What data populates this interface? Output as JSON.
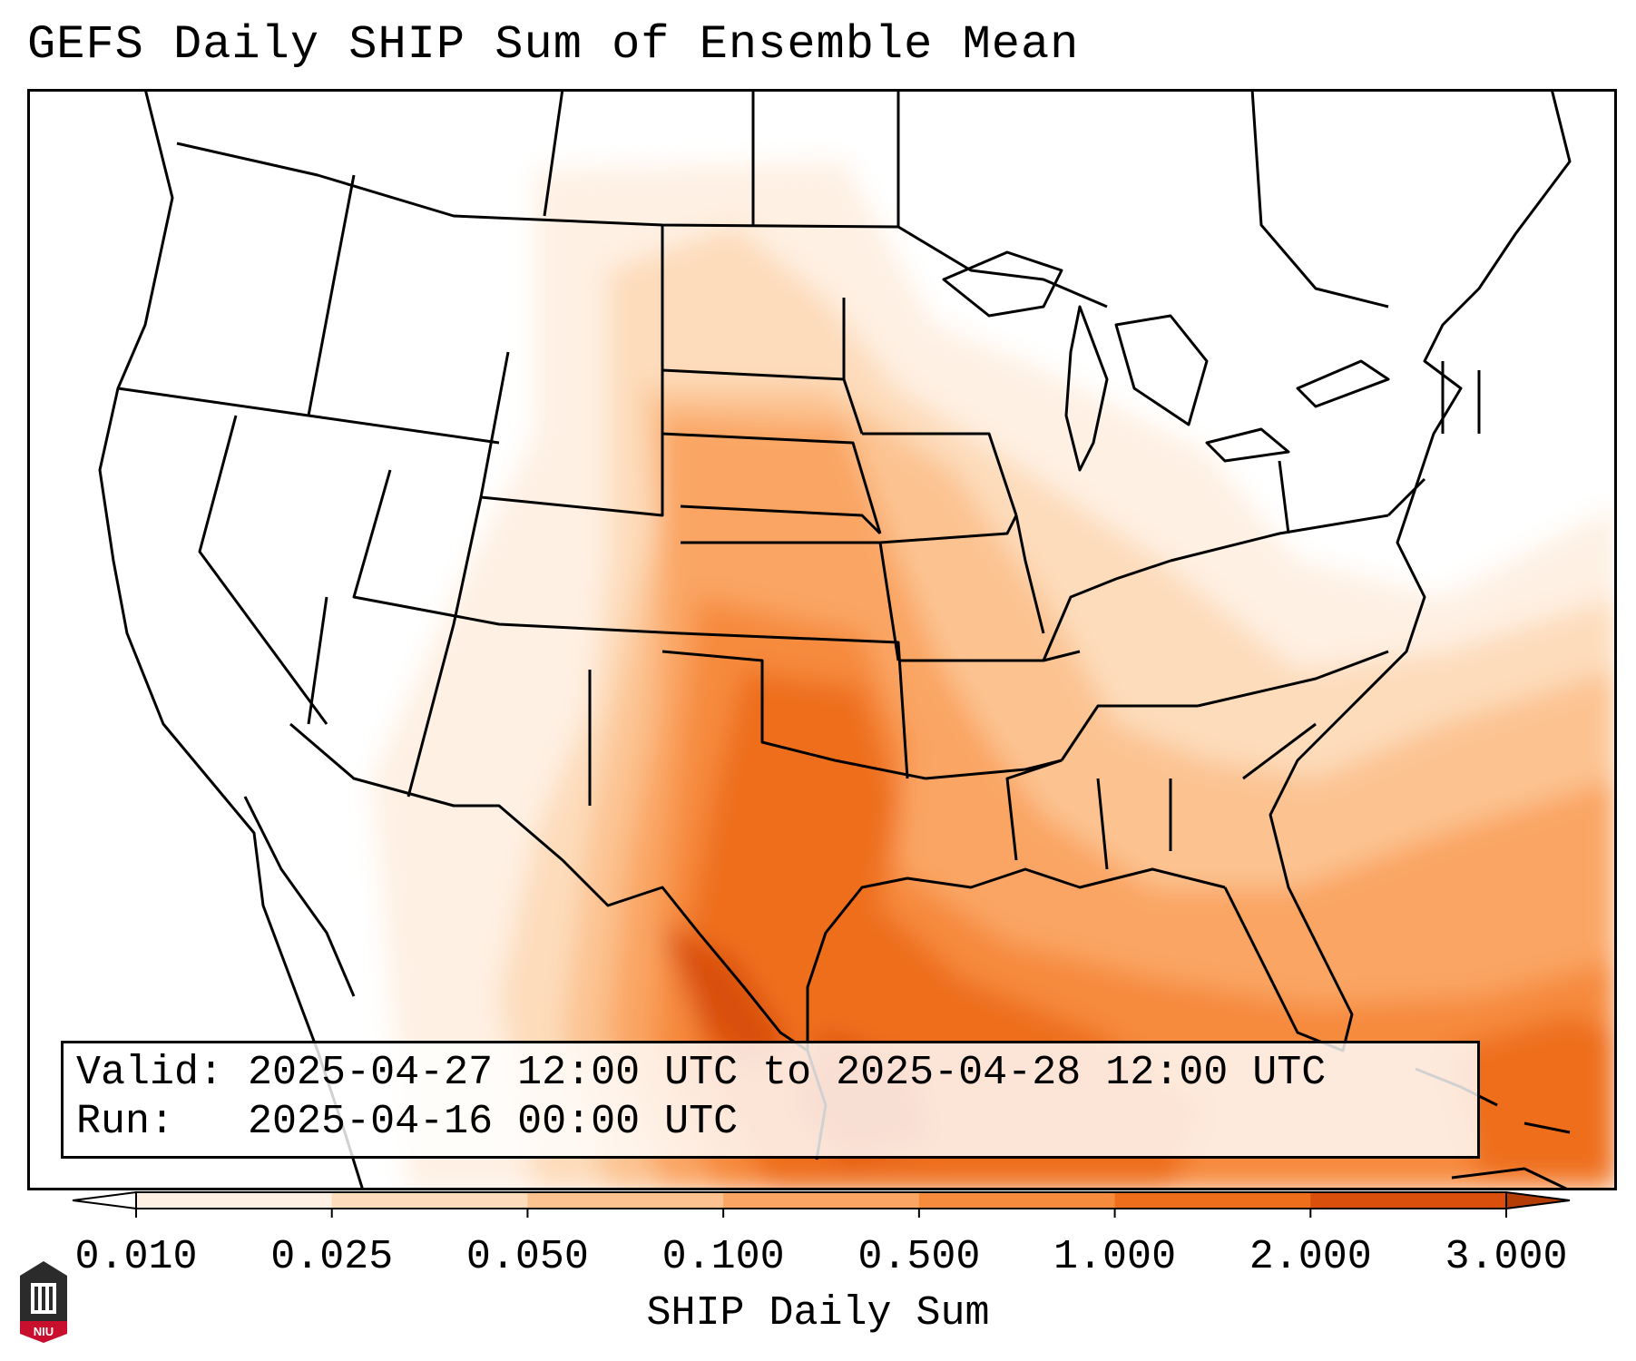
{
  "title": "GEFS Daily SHIP Sum of Ensemble Mean",
  "valid_label": "Valid:",
  "valid_value": "2025-04-27 12:00 UTC to 2025-04-28 12:00 UTC",
  "run_label": "Run:",
  "run_value": "2025-04-16 00:00 UTC",
  "colorbar": {
    "label": "SHIP Daily Sum",
    "ticks": [
      "0.010",
      "0.025",
      "0.050",
      "0.100",
      "0.500",
      "1.000",
      "2.000",
      "3.000"
    ],
    "colors": [
      "#fef0e3",
      "#fddcbb",
      "#fcc391",
      "#faa563",
      "#f68a3d",
      "#ee6e1c",
      "#d94f0b",
      "#b33d05"
    ],
    "extend": "both"
  },
  "logo_text": "NIU",
  "colors": {
    "border": "#000000",
    "background": "#ffffff"
  }
}
